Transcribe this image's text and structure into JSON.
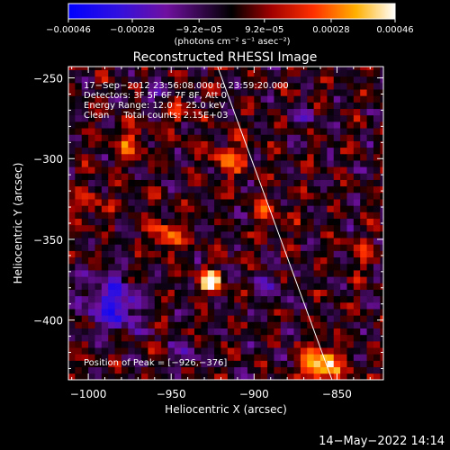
{
  "chart_data": {
    "type": "heatmap",
    "title": "Reconstructed RHESSI Image",
    "xlabel": "Heliocentric X (arcsec)",
    "ylabel": "Heliocentric Y (arcsec)",
    "xlim": [
      -1012,
      -822
    ],
    "ylim": [
      -437,
      -243
    ],
    "x_ticks": [
      {
        "value": -1000,
        "label": "−1000"
      },
      {
        "value": -950,
        "label": "−950"
      },
      {
        "value": -900,
        "label": "−900"
      },
      {
        "value": -850,
        "label": "−850"
      }
    ],
    "y_ticks": [
      {
        "value": -250,
        "label": "−250"
      },
      {
        "value": -300,
        "label": "−300"
      },
      {
        "value": -350,
        "label": "−350"
      },
      {
        "value": -400,
        "label": "−400"
      }
    ],
    "colorbar": {
      "range": [
        -0.00046,
        0.00046
      ],
      "ticks": [
        {
          "value": -0.00046,
          "label": "−0.00046"
        },
        {
          "value": -0.00028,
          "label": "−0.00028"
        },
        {
          "value": -9.2e-05,
          "label": "−9.2e−05"
        },
        {
          "value": 9.2e-05,
          "label": "9.2e−05"
        },
        {
          "value": 0.00028,
          "label": "0.00028"
        },
        {
          "value": 0.00046,
          "label": "0.00046"
        }
      ],
      "units": "(photons cm⁻² s⁻¹ asec⁻²)"
    },
    "info_lines": [
      "17−Sep−2012 23:56:08.000 to 23:59:20.000",
      "Detectors: 3F 5F 6F 7F 8F, Att 0",
      "Energy Range: 12.0 − 25.0 keV",
      "Clean     Total counts: 2.15E+03"
    ],
    "peak_label": "Position of Peak = [−926,−376]",
    "peak_position": [
      -926,
      -376
    ],
    "limb_line": {
      "from": [
        -922,
        -243
      ],
      "to": [
        -853,
        -437
      ]
    },
    "hot_spots": [
      {
        "x": -926,
        "y": -376,
        "intensity": 1.0,
        "radius": 7
      },
      {
        "x": -860,
        "y": -428,
        "intensity": 0.85,
        "radius": 12
      },
      {
        "x": -953,
        "y": -348,
        "intensity": 0.6,
        "radius": 9
      },
      {
        "x": -975,
        "y": -292,
        "intensity": 0.45,
        "radius": 10
      },
      {
        "x": -915,
        "y": -300,
        "intensity": 0.45,
        "radius": 11
      },
      {
        "x": -945,
        "y": -270,
        "intensity": 0.4,
        "radius": 9
      },
      {
        "x": -890,
        "y": -335,
        "intensity": 0.35,
        "radius": 9
      },
      {
        "x": -835,
        "y": -360,
        "intensity": 0.3,
        "radius": 8
      },
      {
        "x": -1000,
        "y": -330,
        "intensity": 0.35,
        "radius": 9
      }
    ],
    "cold_spots": [
      {
        "x": -985,
        "y": -390,
        "intensity": 0.75,
        "radius": 16
      },
      {
        "x": -960,
        "y": -260,
        "intensity": 0.35,
        "radius": 8
      },
      {
        "x": -890,
        "y": -380,
        "intensity": 0.35,
        "radius": 10
      },
      {
        "x": -940,
        "y": -420,
        "intensity": 0.3,
        "radius": 9
      },
      {
        "x": -870,
        "y": -275,
        "intensity": 0.25,
        "radius": 8
      }
    ]
  },
  "footer": {
    "timestamp": "14−May−2022 14:14"
  }
}
